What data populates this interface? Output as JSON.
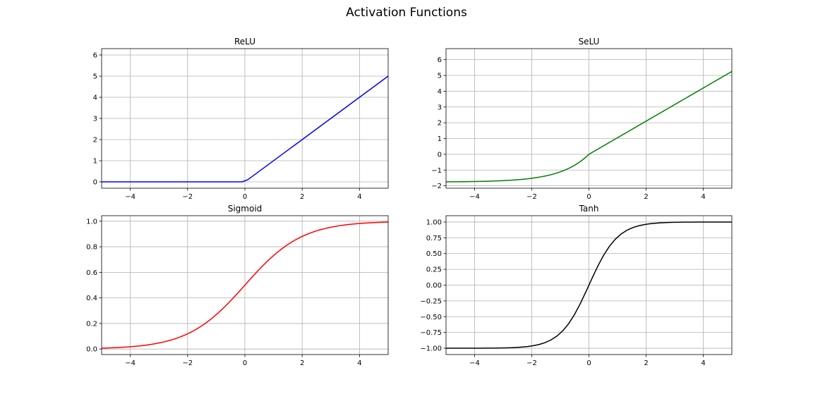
{
  "figure": {
    "title": "Activation Functions"
  },
  "chart_data": [
    {
      "type": "line",
      "title": "ReLU",
      "color": "#0000ff",
      "xlim": [
        -5,
        5
      ],
      "ylim": [
        -0.3,
        6.3
      ],
      "xticks": [
        -4,
        -2,
        0,
        2,
        4
      ],
      "xtick_labels": [
        "−4",
        "−2",
        "0",
        "2",
        "4"
      ],
      "yticks": [
        0,
        1,
        2,
        3,
        4,
        5,
        6
      ],
      "ytick_labels": [
        "0",
        "1",
        "2",
        "3",
        "4",
        "5",
        "6"
      ],
      "grid": true,
      "function": "relu",
      "x": [
        -5,
        -4,
        -3,
        -2,
        -1,
        -0.1,
        0.1,
        1,
        2,
        3,
        4,
        5
      ],
      "y": [
        0,
        0,
        0,
        0,
        0,
        0,
        0.1,
        1,
        2,
        3,
        4,
        5
      ]
    },
    {
      "type": "line",
      "title": "SeLU",
      "color": "#008000",
      "xlim": [
        -5,
        5
      ],
      "ylim": [
        -2.15,
        6.7
      ],
      "xticks": [
        -4,
        -2,
        0,
        2,
        4
      ],
      "xtick_labels": [
        "−4",
        "−2",
        "0",
        "2",
        "4"
      ],
      "yticks": [
        -2,
        -1,
        0,
        1,
        2,
        3,
        4,
        5,
        6
      ],
      "ytick_labels": [
        "−2",
        "−1",
        "0",
        "1",
        "2",
        "3",
        "4",
        "5",
        "6"
      ],
      "grid": true,
      "function": "selu",
      "x": [
        -5,
        -4,
        -3,
        -2,
        -1.5,
        -1,
        -0.5,
        -0.25,
        0,
        1,
        2,
        3,
        4,
        5
      ],
      "y": [
        -1.746,
        -1.726,
        -1.671,
        -1.52,
        -1.366,
        -1.111,
        -0.692,
        -0.388,
        0,
        1.051,
        2.101,
        3.152,
        4.203,
        5.254
      ]
    },
    {
      "type": "line",
      "title": "Sigmoid",
      "color": "#ff0000",
      "xlim": [
        -5,
        5
      ],
      "ylim": [
        -0.043,
        1.043
      ],
      "xticks": [
        -4,
        -2,
        0,
        2,
        4
      ],
      "xtick_labels": [
        "−4",
        "−2",
        "0",
        "2",
        "4"
      ],
      "yticks": [
        0.0,
        0.2,
        0.4,
        0.6,
        0.8,
        1.0
      ],
      "ytick_labels": [
        "0.0",
        "0.2",
        "0.4",
        "0.6",
        "0.8",
        "1.0"
      ],
      "grid": true,
      "function": "sigmoid",
      "x": [
        -5,
        -4,
        -3,
        -2,
        -1,
        0,
        1,
        2,
        3,
        4,
        5
      ],
      "y": [
        0.0067,
        0.018,
        0.047,
        0.119,
        0.269,
        0.5,
        0.731,
        0.881,
        0.953,
        0.982,
        0.9933
      ]
    },
    {
      "type": "line",
      "title": "Tanh",
      "color": "#000000",
      "xlim": [
        -5,
        5
      ],
      "ylim": [
        -1.1,
        1.1
      ],
      "xticks": [
        -4,
        -2,
        0,
        2,
        4
      ],
      "xtick_labels": [
        "−4",
        "−2",
        "0",
        "2",
        "4"
      ],
      "yticks": [
        -1.0,
        -0.75,
        -0.5,
        -0.25,
        0.0,
        0.25,
        0.5,
        0.75,
        1.0
      ],
      "ytick_labels": [
        "−1.00",
        "−0.75",
        "−0.50",
        "−0.25",
        "0.00",
        "0.25",
        "0.50",
        "0.75",
        "1.00"
      ],
      "grid": true,
      "function": "tanh",
      "x": [
        -5,
        -4,
        -3,
        -2,
        -1,
        -0.5,
        0,
        0.5,
        1,
        2,
        3,
        4,
        5
      ],
      "y": [
        -0.9999,
        -0.9993,
        -0.995,
        -0.964,
        -0.762,
        -0.462,
        0,
        0.462,
        0.762,
        0.964,
        0.995,
        0.9993,
        0.9999
      ]
    }
  ]
}
